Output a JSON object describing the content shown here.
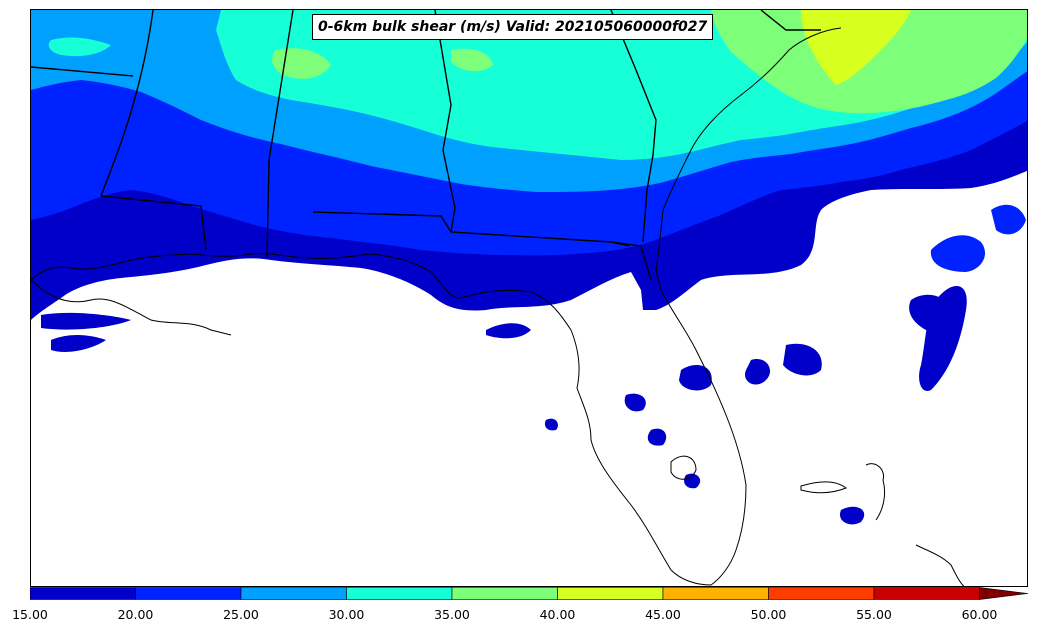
{
  "title": "0-6km bulk shear (m/s) Valid: 202105060000f027",
  "colorbar": {
    "ticks": [
      "15.00",
      "20.00",
      "25.00",
      "30.00",
      "35.00",
      "40.00",
      "45.00",
      "50.00",
      "55.00",
      "60.00"
    ],
    "colors": [
      "#0000c8",
      "#0022ff",
      "#00a0ff",
      "#16ffd6",
      "#7dff7a",
      "#d7ff1f",
      "#ffb300",
      "#ff3c00",
      "#c80000"
    ],
    "extend": "max"
  },
  "levels": {
    "l15": "#0000c8",
    "l20": "#0022ff",
    "l25": "#00a0ff",
    "l30": "#16ffd6",
    "l35": "#7dff7a",
    "l40": "#d7ff1f"
  }
}
